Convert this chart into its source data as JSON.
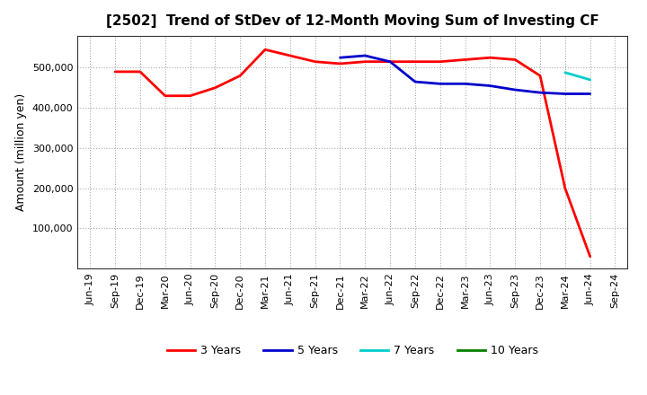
{
  "title": "[2502]  Trend of StDev of 12-Month Moving Sum of Investing CF",
  "ylabel": "Amount (million yen)",
  "x_labels": [
    "Jun-19",
    "Sep-19",
    "Dec-19",
    "Mar-20",
    "Jun-20",
    "Sep-20",
    "Dec-20",
    "Mar-21",
    "Jun-21",
    "Sep-21",
    "Dec-21",
    "Mar-22",
    "Jun-22",
    "Sep-22",
    "Dec-22",
    "Mar-23",
    "Jun-23",
    "Sep-23",
    "Dec-23",
    "Mar-24",
    "Jun-24",
    "Sep-24"
  ],
  "series": {
    "3 Years": {
      "color": "#ff0000",
      "data_y": [
        null,
        490000,
        490000,
        430000,
        430000,
        450000,
        480000,
        545000,
        530000,
        515000,
        510000,
        515000,
        515000,
        515000,
        515000,
        520000,
        525000,
        520000,
        480000,
        200000,
        30000,
        null
      ]
    },
    "5 Years": {
      "color": "#0000cc",
      "data_y": [
        null,
        null,
        null,
        null,
        null,
        null,
        null,
        null,
        null,
        null,
        525000,
        530000,
        515000,
        465000,
        460000,
        460000,
        455000,
        445000,
        438000,
        435000,
        435000,
        null
      ]
    },
    "7 Years": {
      "color": "#00cccc",
      "data_y": [
        null,
        null,
        null,
        null,
        null,
        null,
        null,
        null,
        null,
        null,
        null,
        null,
        null,
        null,
        null,
        null,
        null,
        null,
        null,
        488000,
        470000,
        null
      ]
    },
    "10 Years": {
      "color": "#008000",
      "data_y": [
        null,
        null,
        null,
        null,
        null,
        null,
        null,
        null,
        null,
        null,
        null,
        null,
        null,
        null,
        null,
        null,
        null,
        null,
        null,
        null,
        null,
        null
      ]
    }
  },
  "ylim": [
    0,
    580000
  ],
  "yticks": [
    100000,
    200000,
    300000,
    400000,
    500000
  ],
  "background_color": "#ffffff",
  "grid_color": "#999999",
  "title_fontsize": 11,
  "ylabel_fontsize": 9,
  "tick_fontsize": 8,
  "legend_fontsize": 9,
  "linewidth": 2.0
}
